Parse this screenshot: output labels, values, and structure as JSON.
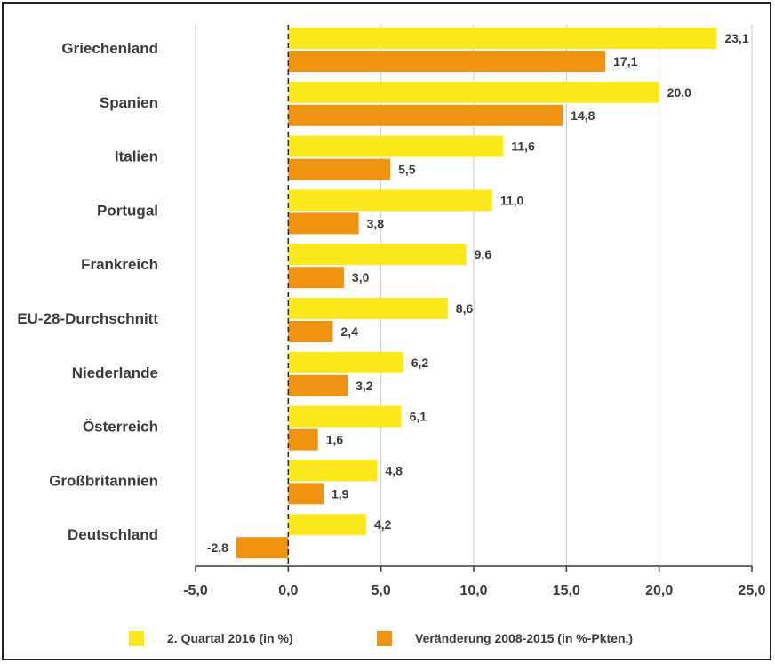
{
  "chart_data": {
    "type": "bar",
    "orientation": "horizontal",
    "categories": [
      "Griechenland",
      "Spanien",
      "Italien",
      "Portugal",
      "Frankreich",
      "EU-28-Durchschnitt",
      "Niederlande",
      "Österreich",
      "Großbritannien",
      "Deutschland"
    ],
    "series": [
      {
        "name": "2. Quartal 2016 (in %)",
        "color": "#fbe91e",
        "values": [
          23.1,
          20.0,
          11.6,
          11.0,
          9.6,
          8.6,
          6.2,
          6.1,
          4.8,
          4.2
        ],
        "labels": [
          "23,1",
          "20,0",
          "11,6",
          "11,0",
          "9,6",
          "8,6",
          "6,2",
          "6,1",
          "4,8",
          "4,2"
        ]
      },
      {
        "name": "Veränderung 2008-2015 (in %-Pkten.)",
        "color": "#ef9311",
        "values": [
          17.1,
          14.8,
          5.5,
          3.8,
          3.0,
          2.4,
          3.2,
          1.6,
          1.9,
          -2.8
        ],
        "labels": [
          "17,1",
          "14,8",
          "5,5",
          "3,8",
          "3,0",
          "2,4",
          "3,2",
          "1,6",
          "1,9",
          "-2,8"
        ]
      }
    ],
    "xlim": [
      -5,
      25
    ],
    "x_ticks": [
      -5,
      0,
      5,
      10,
      15,
      20,
      25
    ],
    "x_tick_labels": [
      "-5,0",
      "0,0",
      "5,0",
      "10,0",
      "15,0",
      "20,0",
      "25,0"
    ],
    "grid": "vertical",
    "legend_position": "bottom",
    "title": "",
    "xlabel": "",
    "ylabel": ""
  }
}
